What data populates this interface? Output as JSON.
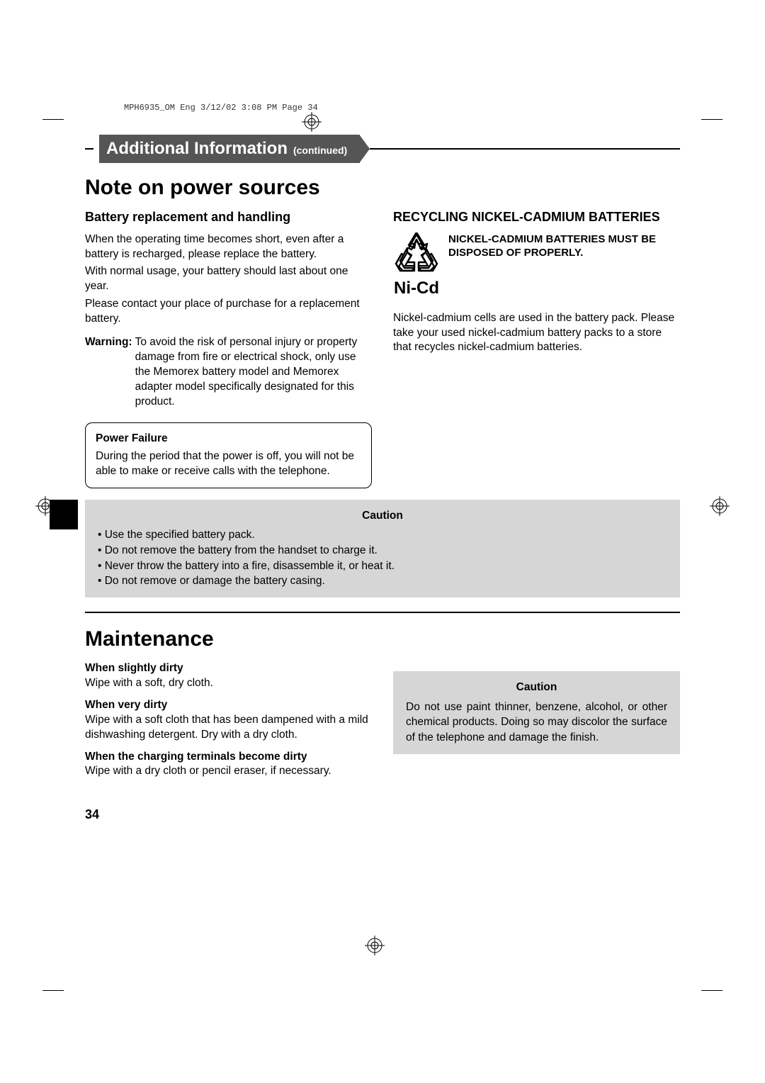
{
  "crop_header": "MPH6935_OM Eng  3/12/02  3:08 PM  Page 34",
  "banner": {
    "title": "Additional Information",
    "subtitle": "(continued)"
  },
  "section1": {
    "title": "Note on power sources",
    "left": {
      "heading": "Battery replacement and handling",
      "p1": "When the operating time becomes short, even after a battery is recharged, please replace the battery.",
      "p2": "With normal usage, your battery should last about one year.",
      "p3": "Please contact your place of purchase for a replacement battery.",
      "warning_label": "Warning:",
      "warning_text": "To avoid the risk of personal injury or property damage from fire or electrical shock, only use the Memorex battery model and Memorex adapter model specifically designated for this product.",
      "box_title": "Power Failure",
      "box_text": "During the period that the power is off, you will not be able to make or receive calls with the telephone."
    },
    "right": {
      "heading": "RECYCLING NICKEL-CADMIUM BATTERIES",
      "nicd_label": "Ni-Cd",
      "recycle_bold": "NICKEL-CADMIUM BATTERIES MUST BE DISPOSED OF PROPERLY.",
      "body": "Nickel-cadmium cells are used in the battery pack. Please take your used nickel-cadmium battery packs to a store that recycles nickel-cadmium batteries."
    },
    "caution": {
      "title": "Caution",
      "items": [
        "Use the specified battery pack.",
        "Do not remove the battery from the handset to charge it.",
        "Never throw the battery into a fire, disassemble it, or heat it.",
        "Do not remove or damage the battery casing."
      ]
    }
  },
  "section2": {
    "title": "Maintenance",
    "left": {
      "h1": "When slightly dirty",
      "p1": "Wipe with a soft, dry cloth.",
      "h2": "When very dirty",
      "p2": "Wipe with a soft cloth that has been dampened with a mild dishwashing detergent. Dry with a dry cloth.",
      "h3": "When the charging terminals become dirty",
      "p3": "Wipe with a dry cloth or pencil eraser, if necessary."
    },
    "right_caution": {
      "title": "Caution",
      "text": "Do not use paint thinner, benzene, alcohol, or other chemical products. Doing so may discolor the surface of the telephone and damage the finish."
    }
  },
  "page_number": "34",
  "colors": {
    "banner_bg": "#555555",
    "caution_bg": "#d6d6d6"
  }
}
